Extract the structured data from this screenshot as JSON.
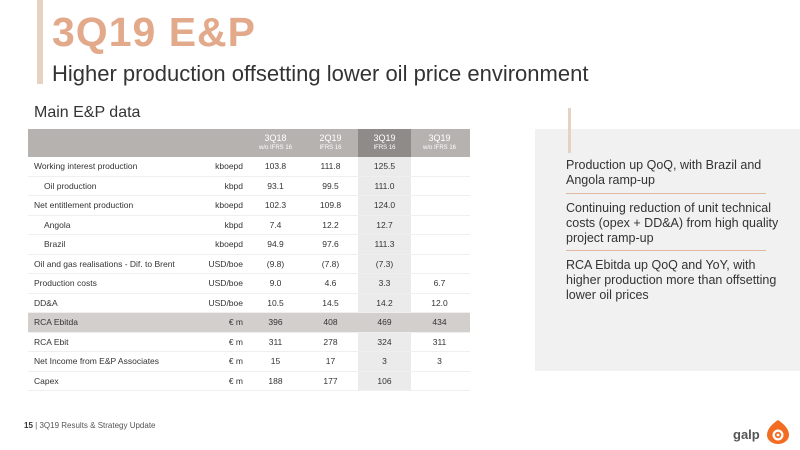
{
  "slide": {
    "title": "3Q19 E&P",
    "subtitle": "Higher production offsetting lower oil price environment",
    "section_title": "Main E&P data"
  },
  "table": {
    "columns": [
      {
        "label": "3Q18",
        "note": "w/o IFRS 16"
      },
      {
        "label": "2Q19",
        "note": "IFRS 16"
      },
      {
        "label": "3Q19",
        "note": "IFRS 16"
      },
      {
        "label": "3Q19",
        "note": "w/o IFRS 16"
      }
    ],
    "rows": [
      {
        "label": "Working interest production",
        "unit": "kboepd",
        "values": [
          "103.8",
          "111.8",
          "125.5",
          ""
        ]
      },
      {
        "label": "Oil production",
        "unit": "kbpd",
        "values": [
          "93.1",
          "99.5",
          "111.0",
          ""
        ]
      },
      {
        "label": "Net entitlement production",
        "unit": "kboepd",
        "values": [
          "102.3",
          "109.8",
          "124.0",
          ""
        ]
      },
      {
        "label": "Angola",
        "unit": "kbpd",
        "values": [
          "7.4",
          "12.2",
          "12.7",
          ""
        ]
      },
      {
        "label": "Brazil",
        "unit": "kboepd",
        "values": [
          "94.9",
          "97.6",
          "111.3",
          ""
        ]
      },
      {
        "label": "Oil and gas realisations - Dif. to Brent",
        "unit": "USD/boe",
        "values": [
          "(9.8)",
          "(7.8)",
          "(7.3)",
          ""
        ]
      },
      {
        "label": "Production costs",
        "unit": "USD/boe",
        "values": [
          "9.0",
          "4.6",
          "3.3",
          "6.7"
        ]
      },
      {
        "label": "DD&A",
        "unit": "USD/boe",
        "values": [
          "10.5",
          "14.5",
          "14.2",
          "12.0"
        ]
      },
      {
        "label": "RCA Ebitda",
        "unit": "€ m",
        "values": [
          "396",
          "408",
          "469",
          "434"
        ]
      },
      {
        "label": "RCA Ebit",
        "unit": "€ m",
        "values": [
          "311",
          "278",
          "324",
          "311"
        ]
      },
      {
        "label": "Net Income from E&P Associates",
        "unit": "€ m",
        "values": [
          "15",
          "17",
          "3",
          "3"
        ]
      },
      {
        "label": "Capex",
        "unit": "€ m",
        "values": [
          "188",
          "177",
          "106",
          ""
        ]
      }
    ]
  },
  "highlights": [
    "Production up QoQ, with Brazil and Angola ramp-up",
    "Continuing reduction of unit technical costs (opex + DD&A) from high quality project ramp-up",
    "RCA Ebitda up QoQ and YoY, with higher production more than offsetting lower oil prices"
  ],
  "footer": {
    "page_number": "15",
    "text": "| 3Q19 Results & Strategy Update"
  },
  "logo": {
    "text": "galp",
    "icon": "galp-flame-icon"
  },
  "colors": {
    "title_accent": "#e2a98a",
    "header_gray": "#b6b2af",
    "header_selected": "#8f8b88",
    "ebitda_row": "#d3cfcd",
    "logo_orange": "#f26d21"
  }
}
